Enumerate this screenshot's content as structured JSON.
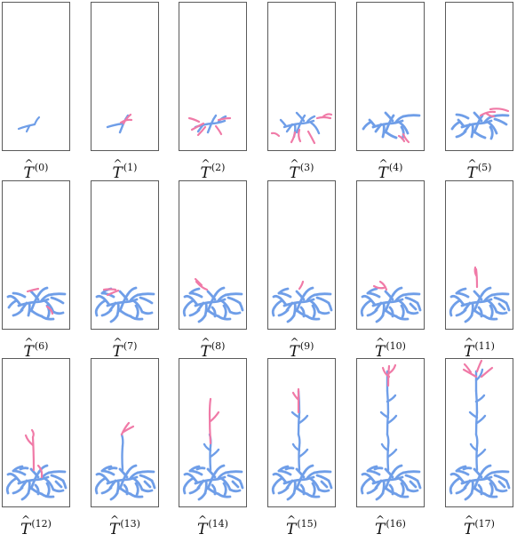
{
  "colors": {
    "existing": "#6f9ee8",
    "new": "#f07aa7",
    "frame": "#5a5a5a"
  },
  "panels": [
    {
      "symbol": "T",
      "step": "(0)"
    },
    {
      "symbol": "T",
      "step": "(1)"
    },
    {
      "symbol": "T",
      "step": "(2)"
    },
    {
      "symbol": "T",
      "step": "(3)"
    },
    {
      "symbol": "T",
      "step": "(4)"
    },
    {
      "symbol": "T",
      "step": "(5)"
    },
    {
      "symbol": "T",
      "step": "(6)"
    },
    {
      "symbol": "T",
      "step": "(7)"
    },
    {
      "symbol": "T",
      "step": "(8)"
    },
    {
      "symbol": "T",
      "step": "(9)"
    },
    {
      "symbol": "T",
      "step": "(10)"
    },
    {
      "symbol": "T",
      "step": "(11)"
    },
    {
      "symbol": "T",
      "step": "(12)"
    },
    {
      "symbol": "T",
      "step": "(13)"
    },
    {
      "symbol": "T",
      "step": "(14)"
    },
    {
      "symbol": "T",
      "step": "(15)"
    },
    {
      "symbol": "T",
      "step": "(16)"
    },
    {
      "symbol": "T",
      "step": "(17)"
    }
  ]
}
